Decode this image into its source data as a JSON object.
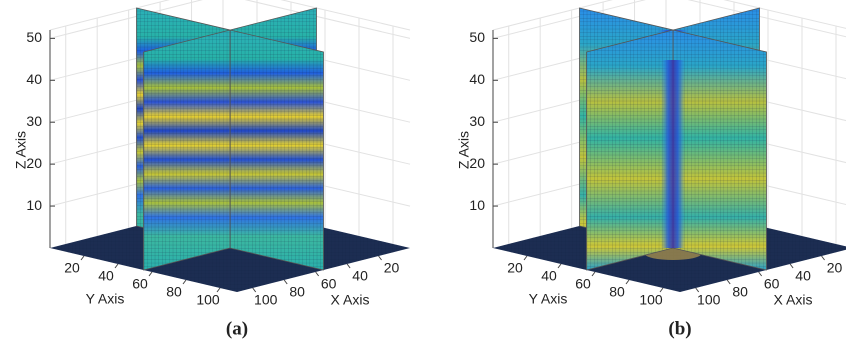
{
  "chart_data": [
    {
      "type": "slice3d",
      "panel_label": "(a)",
      "xlabel": "X Axis",
      "ylabel": "Y Axis",
      "zlabel": "Z Axis",
      "xlim": [
        0,
        110
      ],
      "ylim": [
        0,
        110
      ],
      "zlim": [
        0,
        52
      ],
      "xticks": [
        20,
        40,
        60,
        80,
        100
      ],
      "yticks": [
        20,
        40,
        60,
        80,
        100
      ],
      "zticks": [
        10,
        20,
        30,
        40,
        50
      ],
      "grid": true
    },
    {
      "type": "slice3d",
      "panel_label": "(b)",
      "xlabel": "X Axis",
      "ylabel": "Y Axis",
      "zlabel": "Z Axis",
      "xlim": [
        0,
        110
      ],
      "ylim": [
        0,
        110
      ],
      "zlim": [
        0,
        52
      ],
      "xticks": [
        20,
        40,
        60,
        80,
        100
      ],
      "yticks": [
        20,
        40,
        60,
        80,
        100
      ],
      "zticks": [
        10,
        20,
        30,
        40,
        50
      ],
      "grid": true
    }
  ]
}
